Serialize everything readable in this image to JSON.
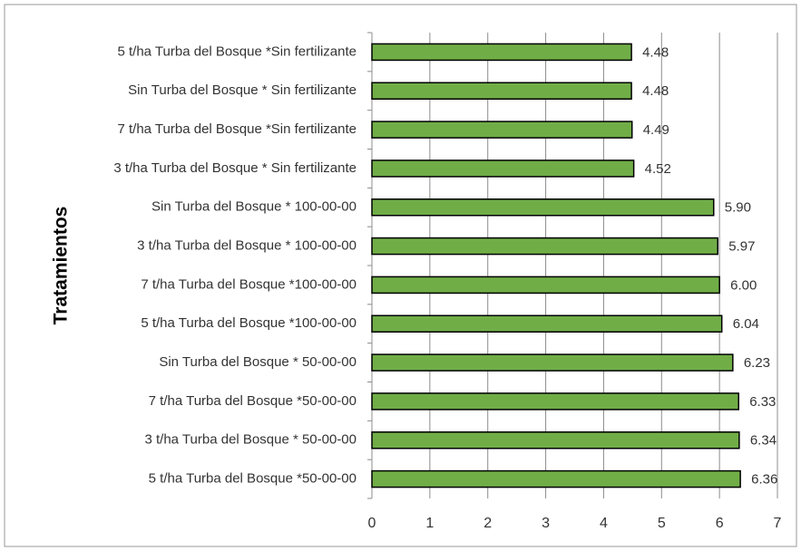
{
  "chart_data": {
    "type": "bar",
    "orientation": "horizontal",
    "y_axis_label": "Tratamientos",
    "categories": [
      "5 t/ha Turba del Bosque *Sin fertilizante",
      "Sin Turba del Bosque * Sin fertilizante",
      "7 t/ha Turba del Bosque *Sin fertilizante",
      "3 t/ha Turba del Bosque * Sin fertilizante",
      "Sin Turba del Bosque * 100-00-00",
      "3 t/ha Turba del Bosque * 100-00-00",
      "7 t/ha Turba del Bosque *100-00-00",
      "5 t/ha Turba del Bosque *100-00-00",
      "Sin Turba del Bosque * 50-00-00",
      "7 t/ha Turba del Bosque *50-00-00",
      "3 t/ha Turba del Bosque * 50-00-00",
      "5 t/ha Turba del Bosque *50-00-00"
    ],
    "values": [
      4.48,
      4.48,
      4.49,
      4.52,
      5.9,
      5.97,
      6.0,
      6.04,
      6.23,
      6.33,
      6.34,
      6.36
    ],
    "value_labels": [
      "4.48",
      "4.48",
      "4.49",
      "4.52",
      "5.90",
      "5.97",
      "6.00",
      "6.04",
      "6.23",
      "6.33",
      "6.34",
      "6.36"
    ],
    "color": "#70ad47",
    "xlim": [
      0,
      7
    ],
    "xticks": [
      0,
      1,
      2,
      3,
      4,
      5,
      6,
      7
    ],
    "grid": true
  }
}
